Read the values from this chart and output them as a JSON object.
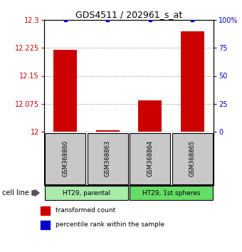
{
  "title": "GDS4511 / 202961_s_at",
  "samples": [
    "GSM368860",
    "GSM368863",
    "GSM368864",
    "GSM368865"
  ],
  "red_values": [
    12.22,
    12.003,
    12.085,
    12.27
  ],
  "blue_values": [
    100,
    100,
    100,
    100
  ],
  "ylim_left": [
    12,
    12.3
  ],
  "ylim_right": [
    0,
    100
  ],
  "left_ticks": [
    12,
    12.075,
    12.15,
    12.225,
    12.3
  ],
  "right_ticks": [
    0,
    25,
    50,
    75,
    100
  ],
  "left_tick_labels": [
    "12",
    "12.075",
    "12.15",
    "12.225",
    "12.3"
  ],
  "right_tick_labels": [
    "0",
    "25",
    "50",
    "75",
    "100%"
  ],
  "cell_groups": [
    {
      "label": "HT29, parental",
      "indices": [
        0,
        1
      ],
      "color": "#aaeaaa"
    },
    {
      "label": "HT29, 1st spheres",
      "indices": [
        2,
        3
      ],
      "color": "#66dd66"
    }
  ],
  "bar_color": "#cc0000",
  "blue_color": "#0000cc",
  "sample_box_color": "#c8c8c8",
  "background_color": "#ffffff",
  "grid_color": "#808080",
  "cell_line_label": "cell line"
}
